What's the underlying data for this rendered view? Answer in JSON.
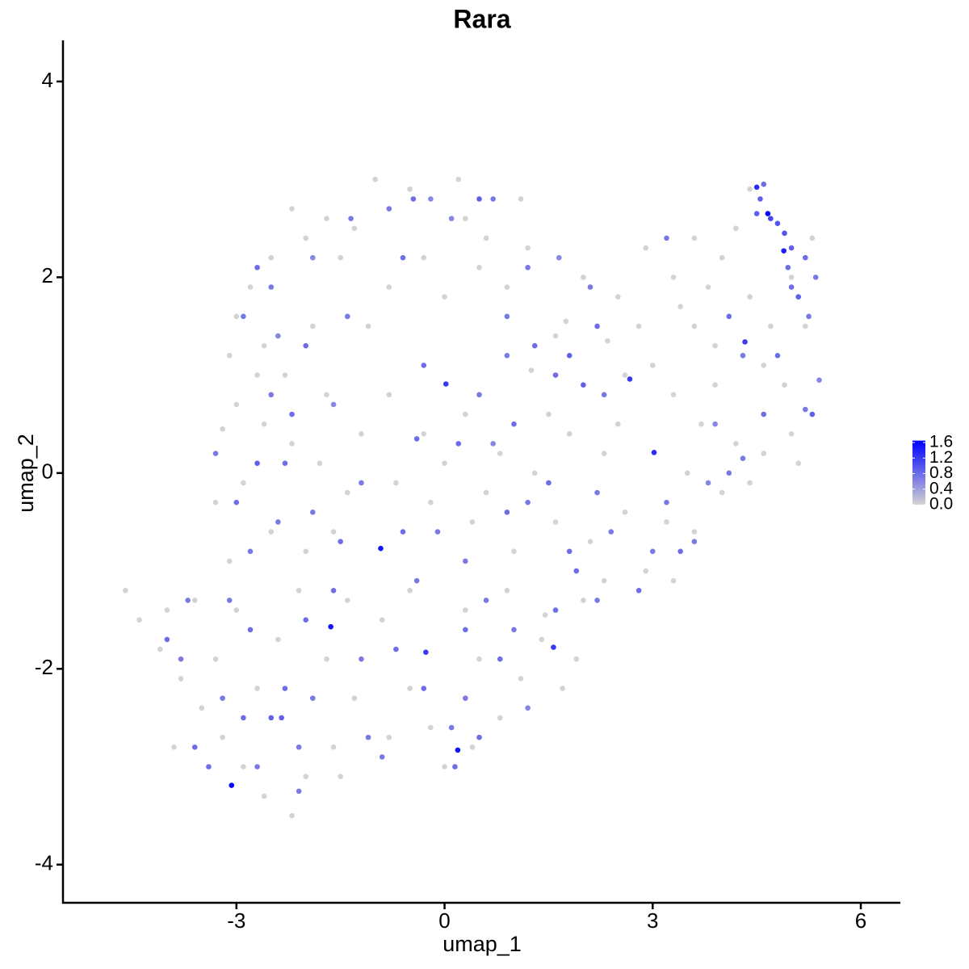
{
  "chart_data": {
    "type": "scatter",
    "title": "Rara",
    "x_label": "umap_1",
    "y_label": "umap_2",
    "x": [
      -3.07,
      -1.64,
      -0.92,
      0.19,
      4.66,
      4.89,
      3.02,
      0.02,
      2.67,
      1.57,
      -0.27,
      4.33,
      4.5,
      -1.7,
      -2.0,
      -2.2,
      -2.5,
      -2.8,
      -3.0,
      -2.6,
      -3.1,
      -2.3,
      -1.9,
      -1.5,
      -1.3,
      -2.5,
      -2.7,
      -1.9,
      -2.0,
      -2.9,
      -1.4,
      -2.4,
      -1.0,
      -0.5,
      0.2,
      0.3,
      0.6,
      1.1,
      -0.3,
      0.0,
      -0.8,
      0.5,
      1.2,
      0.9,
      -1.1,
      -0.45,
      -0.8,
      0.5,
      0.7,
      -0.6,
      -1.35,
      -0.2,
      0.1,
      1.2,
      0.9,
      1.6,
      2.0,
      2.5,
      2.9,
      3.3,
      1.25,
      2.35,
      2.8,
      3.4,
      1.75,
      2.6,
      3.0,
      1.3,
      1.8,
      2.2,
      2.1,
      1.6,
      2.0,
      2.3,
      3.2,
      1.65,
      3.6,
      4.0,
      4.2,
      3.8,
      4.4,
      4.7,
      5.0,
      5.3,
      3.9,
      4.6,
      5.2,
      4.4,
      3.6,
      4.9,
      4.7,
      4.8,
      4.55,
      4.9,
      5.0,
      5.2,
      5.35,
      5.1,
      5.0,
      4.95,
      5.25,
      4.1,
      4.3,
      4.8,
      5.3,
      5.2,
      5.4,
      4.6,
      4.5,
      3.3,
      3.7,
      4.2,
      4.6,
      5.0,
      3.5,
      4.0,
      3.2,
      3.6,
      2.9,
      3.3,
      4.4,
      3.9,
      5.1,
      4.6,
      4.1,
      3.8,
      3.2,
      3.4,
      3.6,
      2.8,
      4.3,
      3.9,
      3.0,
      -0.8,
      -0.3,
      0.3,
      0.8,
      1.3,
      1.8,
      2.3,
      2.6,
      2.1,
      1.6,
      1.0,
      0.4,
      -0.2,
      -0.7,
      0.0,
      0.6,
      1.5,
      2.5,
      -0.4,
      0.2,
      0.5,
      1.0,
      1.5,
      2.2,
      1.8,
      1.2,
      0.9,
      0.3,
      -0.6,
      -0.1,
      2.4,
      0.7,
      -0.3,
      0.9,
      -3.0,
      -2.6,
      -2.2,
      -1.8,
      -1.4,
      -2.9,
      -3.3,
      -2.5,
      -2.0,
      -1.6,
      -3.1,
      -1.2,
      -2.7,
      -1.7,
      -3.2,
      -2.7,
      -2.3,
      -3.0,
      -2.8,
      -2.4,
      -1.9,
      -1.5,
      -1.2,
      -2.2,
      -3.3,
      -1.6,
      -2.5,
      -4.6,
      -4.4,
      -4.1,
      -3.8,
      -3.5,
      -3.2,
      -2.9,
      -2.6,
      -2.2,
      -2.0,
      -1.6,
      -1.3,
      -1.7,
      -2.4,
      -3.0,
      -3.6,
      -4.0,
      -2.7,
      -3.3,
      -1.4,
      -2.1,
      -1.5,
      -3.9,
      -4.0,
      -3.6,
      -3.2,
      -2.9,
      -2.5,
      -2.3,
      -1.9,
      -2.1,
      -2.7,
      -3.4,
      -3.8,
      -2.0,
      -1.6,
      -2.8,
      -3.1,
      -1.2,
      -1.1,
      -2.35,
      -2.1,
      -3.7,
      -0.9,
      -0.5,
      -0.2,
      0.0,
      0.4,
      0.8,
      1.1,
      1.4,
      0.3,
      -0.5,
      0.9,
      -0.8,
      0.5,
      -0.7,
      -0.3,
      0.1,
      0.5,
      0.3,
      0.8,
      1.0,
      -0.4,
      0.3,
      -0.9,
      0.6,
      0.15,
      1.2,
      1.45,
      2.0,
      2.3,
      1.9,
      1.7,
      1.6,
      2.2,
      1.9
    ],
    "values": [
      -3.19,
      -1.57,
      -0.77,
      -2.83,
      2.65,
      2.27,
      0.21,
      0.91,
      0.96,
      -1.78,
      -1.83,
      1.34,
      2.92,
      2.6,
      2.4,
      2.7,
      2.2,
      1.9,
      1.6,
      1.3,
      1.2,
      1.0,
      1.5,
      2.2,
      2.5,
      1.9,
      2.1,
      2.2,
      1.3,
      1.6,
      1.6,
      1.4,
      3.0,
      2.9,
      3.0,
      2.6,
      2.4,
      2.8,
      2.2,
      1.8,
      1.9,
      2.1,
      2.3,
      1.9,
      1.5,
      2.8,
      2.7,
      2.8,
      2.8,
      2.2,
      2.6,
      2.8,
      2.6,
      2.1,
      1.6,
      1.4,
      2.0,
      1.8,
      2.3,
      2.0,
      1.05,
      1.35,
      1.5,
      1.7,
      1.55,
      1.0,
      1.1,
      1.3,
      1.2,
      1.5,
      1.9,
      1.0,
      0.9,
      0.8,
      2.4,
      2.2,
      2.4,
      2.2,
      2.5,
      1.9,
      1.8,
      1.5,
      2.0,
      2.4,
      1.3,
      1.1,
      1.5,
      2.9,
      1.5,
      0.9,
      2.6,
      2.55,
      2.8,
      2.45,
      2.3,
      2.2,
      2.0,
      1.8,
      1.9,
      2.1,
      1.6,
      1.6,
      1.2,
      1.2,
      0.6,
      0.65,
      0.95,
      2.95,
      2.65,
      0.8,
      0.5,
      0.3,
      0.2,
      0.4,
      0.0,
      -0.2,
      -0.5,
      -0.6,
      -1.0,
      -1.1,
      -0.1,
      0.9,
      0.1,
      0.6,
      0.0,
      -0.1,
      -0.3,
      -0.8,
      -0.7,
      -1.2,
      0.15,
      0.5,
      -0.8,
      0.8,
      0.4,
      0.6,
      0.2,
      0.0,
      0.4,
      0.2,
      -0.4,
      -0.7,
      -0.5,
      -0.8,
      -0.5,
      -0.3,
      -0.1,
      0.1,
      -0.2,
      0.6,
      0.5,
      0.35,
      0.3,
      0.8,
      0.5,
      -0.1,
      -0.2,
      -0.8,
      -0.3,
      -0.4,
      -0.9,
      -0.6,
      -0.6,
      -0.6,
      0.3,
      1.1,
      1.2,
      0.7,
      0.5,
      0.3,
      0.1,
      -0.2,
      -0.1,
      -0.3,
      -0.6,
      -0.8,
      -0.6,
      -0.9,
      0.4,
      1.0,
      0.8,
      0.45,
      0.1,
      0.1,
      -0.3,
      -0.8,
      -0.5,
      -0.4,
      -0.7,
      -0.1,
      0.6,
      0.2,
      0.7,
      0.8,
      -1.2,
      -1.5,
      -1.8,
      -2.1,
      -2.4,
      -2.7,
      -3.0,
      -3.3,
      -3.5,
      -3.1,
      -2.8,
      -2.3,
      -1.9,
      -1.7,
      -1.4,
      -1.3,
      -1.4,
      -2.2,
      -1.9,
      -1.3,
      -1.2,
      -3.1,
      -2.8,
      -1.7,
      -2.8,
      -2.3,
      -2.5,
      -2.5,
      -2.2,
      -2.3,
      -2.8,
      -3.0,
      -3.0,
      -1.9,
      -1.5,
      -1.2,
      -1.6,
      -1.3,
      -1.9,
      -2.7,
      -2.5,
      -3.25,
      -1.3,
      -1.5,
      -2.2,
      -2.6,
      -3.0,
      -2.8,
      -2.5,
      -2.1,
      -1.7,
      -1.4,
      -1.2,
      -1.2,
      -2.7,
      -1.9,
      -1.8,
      -2.2,
      -2.6,
      -2.7,
      -2.3,
      -1.9,
      -1.6,
      -1.1,
      -1.6,
      -2.9,
      -1.3,
      -3.0,
      -2.4,
      -1.45,
      -1.3,
      -1.1,
      -1.9,
      -2.2,
      -1.4,
      -1.3,
      -1.0
    ],
    "expression": [
      1.6,
      1.5,
      1.5,
      1.5,
      1.6,
      1.4,
      1.3,
      1.2,
      1.2,
      1.2,
      1.2,
      1.2,
      1.3,
      0,
      0,
      0,
      0,
      0,
      0,
      0,
      0,
      0,
      0,
      0,
      0,
      0.7,
      0.8,
      0.6,
      0.8,
      0.7,
      0.7,
      0.6,
      0,
      0,
      0,
      0,
      0,
      0,
      0,
      0,
      0,
      0,
      0,
      0,
      0,
      0.8,
      0.7,
      0.9,
      0.7,
      0.8,
      0.7,
      0.6,
      0.6,
      0.7,
      0.7,
      0,
      0,
      0,
      0,
      0,
      0,
      0,
      0,
      0,
      0,
      0,
      0,
      0.8,
      0.9,
      0.8,
      0.7,
      0.8,
      0.9,
      0.7,
      0.7,
      0.6,
      0,
      0,
      0,
      0,
      0,
      0,
      0,
      0,
      0,
      0,
      0,
      0,
      0,
      0,
      1.1,
      1.0,
      0.9,
      1.0,
      0.9,
      0.8,
      0.7,
      0.9,
      0.8,
      0.8,
      0.7,
      0.8,
      0.7,
      0.8,
      0.9,
      0.7,
      0.6,
      0.8,
      0.9,
      0,
      0,
      0,
      0,
      0,
      0,
      0,
      0,
      0,
      0,
      0,
      0,
      0,
      0,
      0.8,
      0.7,
      0.6,
      0.7,
      0.8,
      0.7,
      0.8,
      0.7,
      0.6,
      0.7,
      0,
      0,
      0,
      0,
      0,
      0,
      0,
      0,
      0,
      0,
      0,
      0,
      0,
      0,
      0,
      0,
      0,
      0,
      0.8,
      0.8,
      0.7,
      0.8,
      0.8,
      0.7,
      0.8,
      0.7,
      0.8,
      0.7,
      0.8,
      0.7,
      0.7,
      0.6,
      0.8,
      0.7,
      0,
      0,
      0,
      0,
      0,
      0,
      0,
      0,
      0,
      0,
      0,
      0,
      0,
      0,
      0,
      0.9,
      0.8,
      0.8,
      0.7,
      0.7,
      0.7,
      0.8,
      0.7,
      0.8,
      0.7,
      0.6,
      0.7,
      0,
      0,
      0,
      0,
      0,
      0,
      0,
      0,
      0,
      0,
      0,
      0,
      0,
      0,
      0,
      0,
      0,
      0,
      0,
      0,
      0,
      0,
      0,
      0.8,
      0.8,
      0.7,
      0.8,
      0.9,
      0.8,
      0.7,
      0.7,
      0.7,
      0.8,
      0.7,
      0.8,
      0.8,
      0.8,
      0.7,
      0.7,
      0.7,
      0.9,
      0.7,
      0.7,
      0,
      0,
      0,
      0,
      0,
      0,
      0,
      0,
      0,
      0,
      0,
      0,
      0,
      0.8,
      0.8,
      0.7,
      0.8,
      0.7,
      0.8,
      0.7,
      0.7,
      0.8,
      0.7,
      0.7,
      0.8,
      0.6,
      0,
      0,
      0,
      0,
      0,
      0.8,
      0.7,
      0.8
    ],
    "color_low": "#d3d3d3",
    "color_high": "#0000ff",
    "clim": [
      0,
      1.65
    ],
    "legend_ticks": [
      {
        "value": 0,
        "label": "0.0"
      },
      0.4,
      0.8,
      1.2,
      1.6
    ],
    "xlim": [
      -5.5,
      6.57
    ],
    "ylim": [
      -4.39,
      4.42
    ],
    "xticks": [
      -3,
      0,
      3,
      6
    ],
    "yticks": [
      -4,
      -2,
      0,
      2,
      4
    ],
    "grid": false
  }
}
